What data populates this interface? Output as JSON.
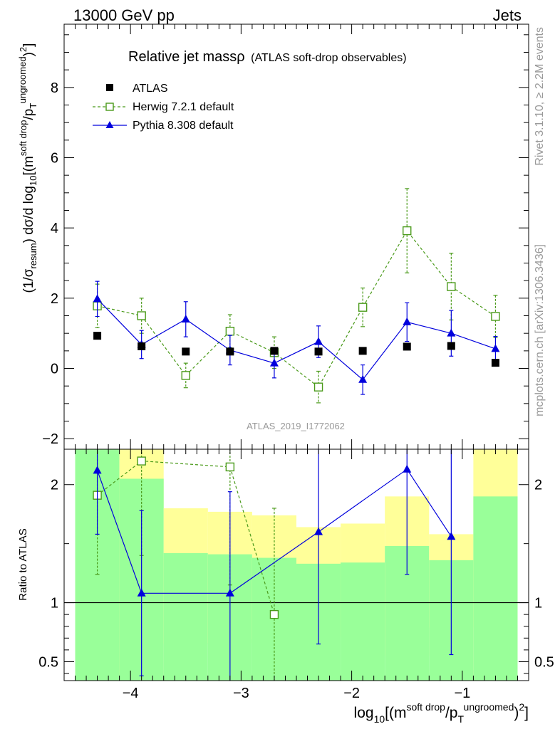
{
  "header": {
    "left": "13000 GeV pp",
    "right": "Jets"
  },
  "side_labels": {
    "rivet": "Rivet 3.1.10, ≥ 2.2M events",
    "mcplots": "mcplots.cern.ch [arXiv:1306.3436]"
  },
  "chart_data": [
    {
      "id": "main",
      "type": "scatter",
      "title_main": "Relative jet massρ",
      "title_sub": "(ATLAS soft-drop observables)",
      "watermark": "ATLAS_2019_I1772062",
      "ylabel": "(1/σresum) dσ/d log10[(m soft drop/pT ungroomed)2]",
      "ylabel_parts": {
        "a": "(1/σ",
        "a_sub": "resum",
        "b": ") dσ/d log",
        "b_sub": "10",
        "c": "[(m",
        "c_sup": "soft drop",
        "d": "/p",
        "d_sub": "T",
        "d_sup": "ungroomed",
        "e": ")",
        "e_sup": "2",
        "f": "]"
      },
      "xlim": [
        -4.6,
        -0.4
      ],
      "ylim": [
        -2.3,
        9.8
      ],
      "yticks": [
        -2,
        0,
        2,
        4,
        6,
        8
      ],
      "ytick_labels": [
        "−2",
        "0",
        "2",
        "4",
        "6",
        "8"
      ],
      "legend": [
        "ATLAS",
        "Herwig 7.2.1 default",
        "Pythia 8.308 default"
      ],
      "series": [
        {
          "name": "ATLAS",
          "color": "#000000",
          "marker": "square-filled",
          "x": [
            -4.3,
            -3.9,
            -3.5,
            -3.1,
            -2.7,
            -2.3,
            -1.9,
            -1.5,
            -1.1,
            -0.7
          ],
          "y": [
            0.93,
            0.63,
            0.48,
            0.48,
            0.5,
            0.48,
            0.5,
            0.62,
            0.64,
            0.16
          ],
          "err": [
            0,
            0,
            0,
            0,
            0,
            0,
            0,
            0,
            0,
            0
          ]
        },
        {
          "name": "Herwig 7.2.1 default",
          "color": "#4a9a1a",
          "marker": "square-open",
          "dashed": true,
          "x": [
            -4.3,
            -3.9,
            -3.5,
            -3.1,
            -2.7,
            -2.3,
            -1.9,
            -1.5,
            -1.1,
            -0.7
          ],
          "y": [
            1.78,
            1.5,
            -0.2,
            1.06,
            0.45,
            -0.53,
            1.74,
            3.92,
            2.33,
            1.48
          ],
          "err": [
            0.62,
            0.5,
            0.35,
            0.47,
            0.45,
            0.45,
            0.55,
            1.2,
            0.95,
            0.6
          ]
        },
        {
          "name": "Pythia 8.308 default",
          "color": "#0000dd",
          "marker": "triangle-filled",
          "x": [
            -4.3,
            -3.9,
            -3.5,
            -3.1,
            -2.7,
            -2.3,
            -1.9,
            -1.5,
            -1.1,
            -0.7
          ],
          "y": [
            1.98,
            0.68,
            1.4,
            0.52,
            0.15,
            0.76,
            -0.32,
            1.32,
            1.0,
            0.56
          ],
          "err": [
            0.5,
            0.4,
            0.5,
            0.42,
            0.42,
            0.45,
            0.42,
            0.55,
            0.65,
            0.35
          ]
        }
      ]
    },
    {
      "id": "ratio",
      "type": "scatter",
      "ylabel": "Ratio to ATLAS",
      "xlabel": "log10[(m soft drop/pT ungroomed)2]",
      "xlabel_parts": {
        "a": "log",
        "a_sub": "10",
        "b": "[(m",
        "b_sup": "soft drop",
        "c": "/p",
        "c_sub": "T",
        "c_sup": "ungroomed",
        "d": ")",
        "d_sup": "2",
        "e": "]"
      },
      "xlim": [
        -4.6,
        -0.4
      ],
      "ylim": [
        0.34,
        2.3
      ],
      "xticks": [
        -4,
        -3,
        -2,
        -1
      ],
      "xtick_labels": [
        "−4",
        "−3",
        "−2",
        "−1"
      ],
      "yticks": [
        0.5,
        1,
        2
      ],
      "ytick_labels": [
        "0.5",
        "1",
        "2"
      ],
      "reference": 1,
      "bands": {
        "bin_edges": [
          -4.5,
          -4.1,
          -3.7,
          -3.3,
          -2.9,
          -2.5,
          -2.1,
          -1.7,
          -1.3,
          -0.9,
          -0.5
        ],
        "yellow": [
          [
            0.34,
            2.3
          ],
          [
            0.34,
            2.3
          ],
          [
            0.65,
            1.8
          ],
          [
            0.66,
            1.77
          ],
          [
            0.69,
            1.74
          ],
          [
            0.76,
            1.64
          ],
          [
            0.71,
            1.67
          ],
          [
            0.55,
            1.9
          ],
          [
            0.79,
            1.58
          ],
          [
            0.34,
            2.3
          ]
        ],
        "green": [
          [
            0.34,
            2.3
          ],
          [
            0.34,
            2.05
          ],
          [
            0.34,
            1.42
          ],
          [
            0.34,
            1.41
          ],
          [
            0.34,
            1.38
          ],
          [
            0.34,
            1.33
          ],
          [
            0.34,
            1.34
          ],
          [
            0.34,
            1.48
          ],
          [
            0.34,
            1.36
          ],
          [
            0.34,
            1.9
          ]
        ]
      },
      "series": [
        {
          "name": "Herwig 7.2.1 default",
          "color": "#4a9a1a",
          "marker": "square-open",
          "dashed": true,
          "x": [
            -4.3,
            -3.9,
            -3.1,
            -2.7
          ],
          "y": [
            1.91,
            2.2,
            2.15,
            0.9
          ],
          "err": [
            0.67,
            0.8,
            1.0,
            0.9
          ]
        },
        {
          "name": "Pythia 8.308 default",
          "color": "#0000dd",
          "marker": "triangle-filled",
          "x": [
            -4.3,
            -3.9,
            -3.1,
            -2.3,
            -1.5,
            -1.1
          ],
          "y": [
            2.12,
            1.08,
            1.08,
            1.6,
            2.13,
            1.56
          ],
          "err": [
            0.54,
            0.7,
            0.86,
            0.95,
            0.89,
            1.0
          ]
        }
      ]
    }
  ]
}
